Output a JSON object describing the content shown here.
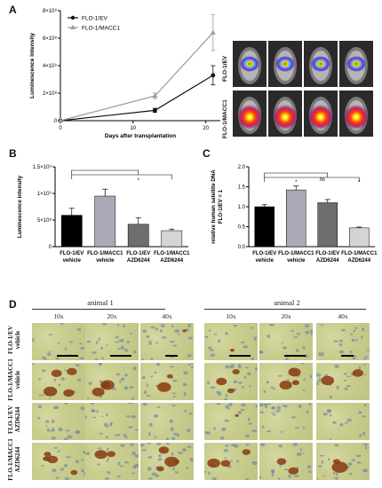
{
  "panels": {
    "A": "A",
    "B": "B",
    "C": "C",
    "D": "D"
  },
  "chart_data": [
    {
      "id": "A",
      "type": "line",
      "ylabel": "Luminescence intensity",
      "xlabel": "Days after transplantation",
      "x": [
        0,
        13,
        21
      ],
      "xticks": [
        "0",
        "10",
        "20"
      ],
      "yticks": [
        "0",
        "2×10⁸",
        "4×10⁸",
        "6×10⁸",
        "8×10⁸"
      ],
      "ylim": [
        0,
        800000000.0
      ],
      "xlim": [
        0,
        22
      ],
      "series": [
        {
          "name": "FLO-1/EV",
          "values": [
            0,
            75000000.0,
            330000000.0
          ],
          "err": [
            0,
            15000000.0,
            70000000.0
          ],
          "color": "#111111",
          "marker": "circle"
        },
        {
          "name": "FLO-1/MACC1",
          "values": [
            0,
            180000000.0,
            640000000.0
          ],
          "err": [
            0,
            20000000.0,
            130000000.0
          ],
          "color": "#9a9a9a",
          "marker": "triangle"
        }
      ],
      "legend": "top-left"
    },
    {
      "id": "B",
      "type": "bar",
      "ylabel": "Luminescence intensity",
      "yticks": [
        "0",
        "5×10⁸",
        "1×10⁹",
        "1.5×10⁹"
      ],
      "ylim": [
        0,
        1500000000.0
      ],
      "categories": [
        [
          "FLO-1/EV",
          "vehicle"
        ],
        [
          "FLO-1/MACC1",
          "vehicle"
        ],
        [
          "FLO-1/EV",
          "AZD6244"
        ],
        [
          "FLO-1/MACC1",
          "AZD6244"
        ]
      ],
      "values": [
        590000000.0,
        950000000.0,
        420000000.0,
        300000000.0
      ],
      "err": [
        130000000.0,
        130000000.0,
        120000000.0,
        30000000.0
      ],
      "colors": [
        "#000000",
        "#a9a9b8",
        "#6e6e6e",
        "#d4d4d4"
      ],
      "annotations": [
        "*"
      ]
    },
    {
      "id": "C",
      "type": "bar",
      "ylabel": [
        "relative human satellite DNA",
        "FLO-1/EV = 1"
      ],
      "yticks": [
        "0.0",
        "0.5",
        "1.0",
        "1.5",
        "2.0"
      ],
      "ylim": [
        0,
        2.0
      ],
      "categories": [
        [
          "FLO-1/EV",
          "vehicle"
        ],
        [
          "FLO-1/MACC1",
          "vehicle"
        ],
        [
          "FLO-1/EV",
          "AZD6244"
        ],
        [
          "FLO-1/MACC1",
          "AZD6244"
        ]
      ],
      "values": [
        1.0,
        1.42,
        1.1,
        0.47
      ],
      "err": [
        0.05,
        0.1,
        0.08,
        0.02
      ],
      "colors": [
        "#000000",
        "#a9a9b8",
        "#6e6e6e",
        "#d4d4d4"
      ],
      "annotations": [
        "*",
        "ns",
        "*"
      ]
    }
  ],
  "imaging": {
    "row_labels": [
      "FLO-1/EV",
      "FLO-1/MACC1"
    ]
  },
  "micro": {
    "animals": [
      "animal 1",
      "animal 2"
    ],
    "mags": [
      "10x",
      "20x",
      "40x"
    ],
    "rows": [
      [
        "FLO-1/EV",
        "vehicle"
      ],
      [
        "FLO-1/MACC1",
        "vehicle"
      ],
      [
        "FLO-1/EV",
        "AZD6244"
      ],
      [
        "FLO-1/MACC1",
        "AZD6244"
      ]
    ]
  }
}
